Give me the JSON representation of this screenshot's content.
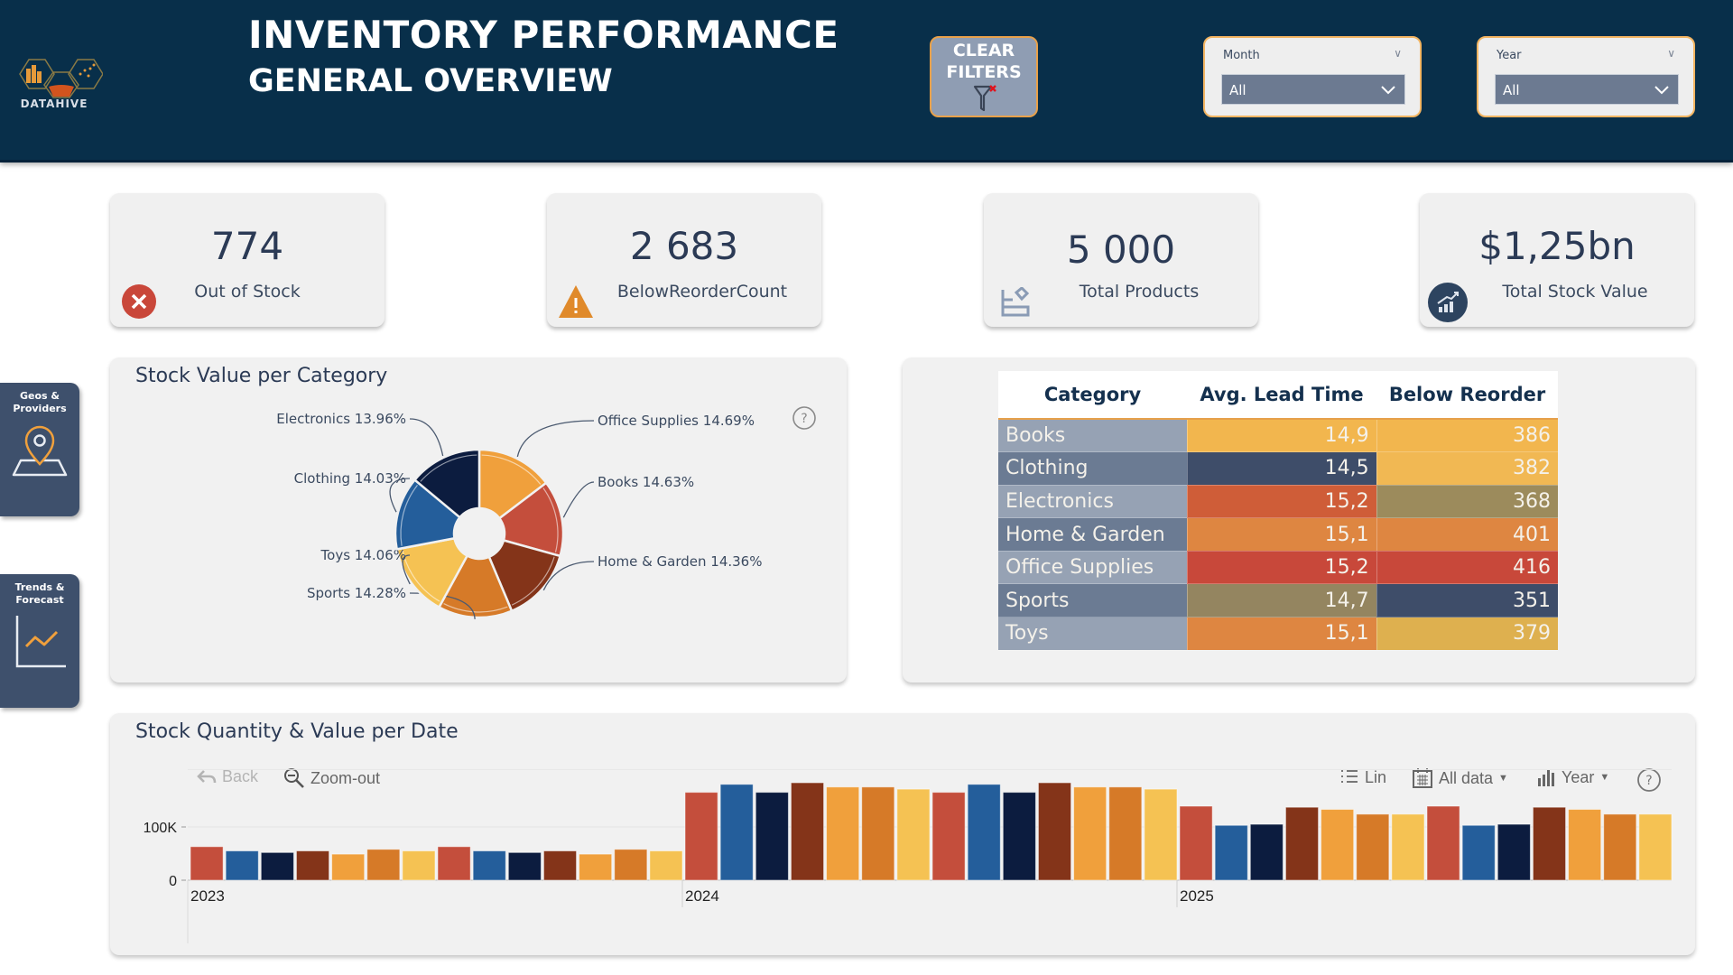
{
  "header": {
    "logo_text": "DATAHIVE",
    "title_line1": "INVENTORY PERFORMANCE",
    "title_line2": "GENERAL OVERVIEW",
    "clear_filters_line1": "CLEAR",
    "clear_filters_line2": "FILTERS",
    "slicers": [
      {
        "label": "Month",
        "value": "All"
      },
      {
        "label": "Year",
        "value": "All"
      }
    ]
  },
  "nav": [
    {
      "line1": "Geos &",
      "line2": "Providers",
      "icon": "map-pin-icon"
    },
    {
      "line1": "Trends &",
      "line2": "Forecast",
      "icon": "trend-line-icon"
    }
  ],
  "kpis": [
    {
      "value": "774",
      "caption": "Out of Stock",
      "icon": "error-x-icon",
      "color": "#c9473a"
    },
    {
      "value": "2 683",
      "caption": "BelowReorderCount",
      "icon": "warning-triangle-icon",
      "color": "#e08a2b"
    },
    {
      "value": "5 000",
      "caption": "Total Products",
      "icon": "products-icon",
      "color": "#8a9bb5"
    },
    {
      "value": "$1,25bn",
      "caption": "Total Stock Value",
      "icon": "growth-chart-icon",
      "color": "#2d4460"
    }
  ],
  "colors": {
    "header_bg": "#082f4a",
    "accent_orange": "#f3b562",
    "navy": "#0c1c3f",
    "blue": "#245e9b",
    "red": "#c44e3c",
    "brown": "#843419",
    "orange": "#f0a03c",
    "dark_orange": "#d67a28",
    "yellow": "#f5c253"
  },
  "pie": {
    "title": "Stock Value per Category",
    "help_icon": "help-circle-icon",
    "chart_data": {
      "type": "pie",
      "donut": true,
      "title": "Stock Value per Category",
      "slices": [
        {
          "label": "Office Supplies",
          "pct": 14.69,
          "pct_label": "14.69%",
          "color": "#f0a03c"
        },
        {
          "label": "Books",
          "pct": 14.63,
          "pct_label": "14.63%",
          "color": "#c44e3c"
        },
        {
          "label": "Home & Garden",
          "pct": 14.36,
          "pct_label": "14.36%",
          "color": "#843419"
        },
        {
          "label": "Sports",
          "pct": 14.28,
          "pct_label": "14.28%",
          "color": "#d67a28"
        },
        {
          "label": "Toys",
          "pct": 14.06,
          "pct_label": "14.06%",
          "color": "#f5c253"
        },
        {
          "label": "Clothing",
          "pct": 14.03,
          "pct_label": "14.03%",
          "color": "#245e9b"
        },
        {
          "label": "Electronics",
          "pct": 13.96,
          "pct_label": "13.96%",
          "color": "#0c1c3f"
        }
      ]
    }
  },
  "table": {
    "chart_data": {
      "type": "table",
      "columns": [
        "Category",
        "Avg. Lead Time",
        "Below Reorder"
      ],
      "rows": [
        {
          "category": "Books",
          "lead": "14,9",
          "below": "386",
          "cat_bg": "#96a2b4",
          "lead_bg": "#f2b64e",
          "below_bg": "#f2b64e"
        },
        {
          "category": "Clothing",
          "lead": "14,5",
          "below": "382",
          "cat_bg": "#6b7b93",
          "lead_bg": "#3e4d69",
          "below_bg": "#f1b853"
        },
        {
          "category": "Electronics",
          "lead": "15,2",
          "below": "368",
          "cat_bg": "#96a2b4",
          "lead_bg": "#cf5d38",
          "below_bg": "#9c8b5c"
        },
        {
          "category": "Home & Garden",
          "lead": "15,1",
          "below": "401",
          "cat_bg": "#6b7b93",
          "lead_bg": "#de8641",
          "below_bg": "#de8641"
        },
        {
          "category": "Office Supplies",
          "lead": "15,2",
          "below": "416",
          "cat_bg": "#96a2b4",
          "lead_bg": "#c8483a",
          "below_bg": "#c8483a"
        },
        {
          "category": "Sports",
          "lead": "14,7",
          "below": "351",
          "cat_bg": "#6b7b93",
          "lead_bg": "#948560",
          "below_bg": "#3e4d69"
        },
        {
          "category": "Toys",
          "lead": "15,1",
          "below": "379",
          "cat_bg": "#96a2b4",
          "lead_bg": "#de8641",
          "below_bg": "#deb04f"
        }
      ]
    }
  },
  "bar": {
    "title": "Stock Quantity & Value per Date",
    "toolbar": {
      "back": "Back",
      "zoom_out": "Zoom-out",
      "scale": "Lin",
      "range": "All data",
      "granularity": "Year"
    },
    "chart_data": {
      "type": "bar",
      "title": "Stock Quantity & Value per Date",
      "xlabel": "",
      "ylabel": "",
      "ylim": [
        0,
        210000
      ],
      "y_ticks": [
        {
          "value": 0,
          "label": "0"
        },
        {
          "value": 100000,
          "label": "100K"
        }
      ],
      "groups": [
        "2023",
        "2024",
        "2025"
      ],
      "series_colors": [
        "#c44e3c",
        "#245e9b",
        "#0c1c3f",
        "#843419",
        "#f0a03c",
        "#d67a28",
        "#f5c253"
      ],
      "values": [
        [
          63000,
          55000,
          52000,
          55000,
          49000,
          58000,
          55000,
          63000,
          55000,
          52000,
          55000,
          49000,
          58000,
          55000
        ],
        [
          165000,
          180000,
          165000,
          183000,
          175000,
          175000,
          171000,
          165000,
          180000,
          165000,
          183000,
          175000,
          175000,
          171000
        ],
        [
          139000,
          103000,
          105000,
          137000,
          133000,
          124000,
          124000,
          139000,
          103000,
          105000,
          137000,
          133000,
          124000,
          124000
        ]
      ]
    }
  }
}
